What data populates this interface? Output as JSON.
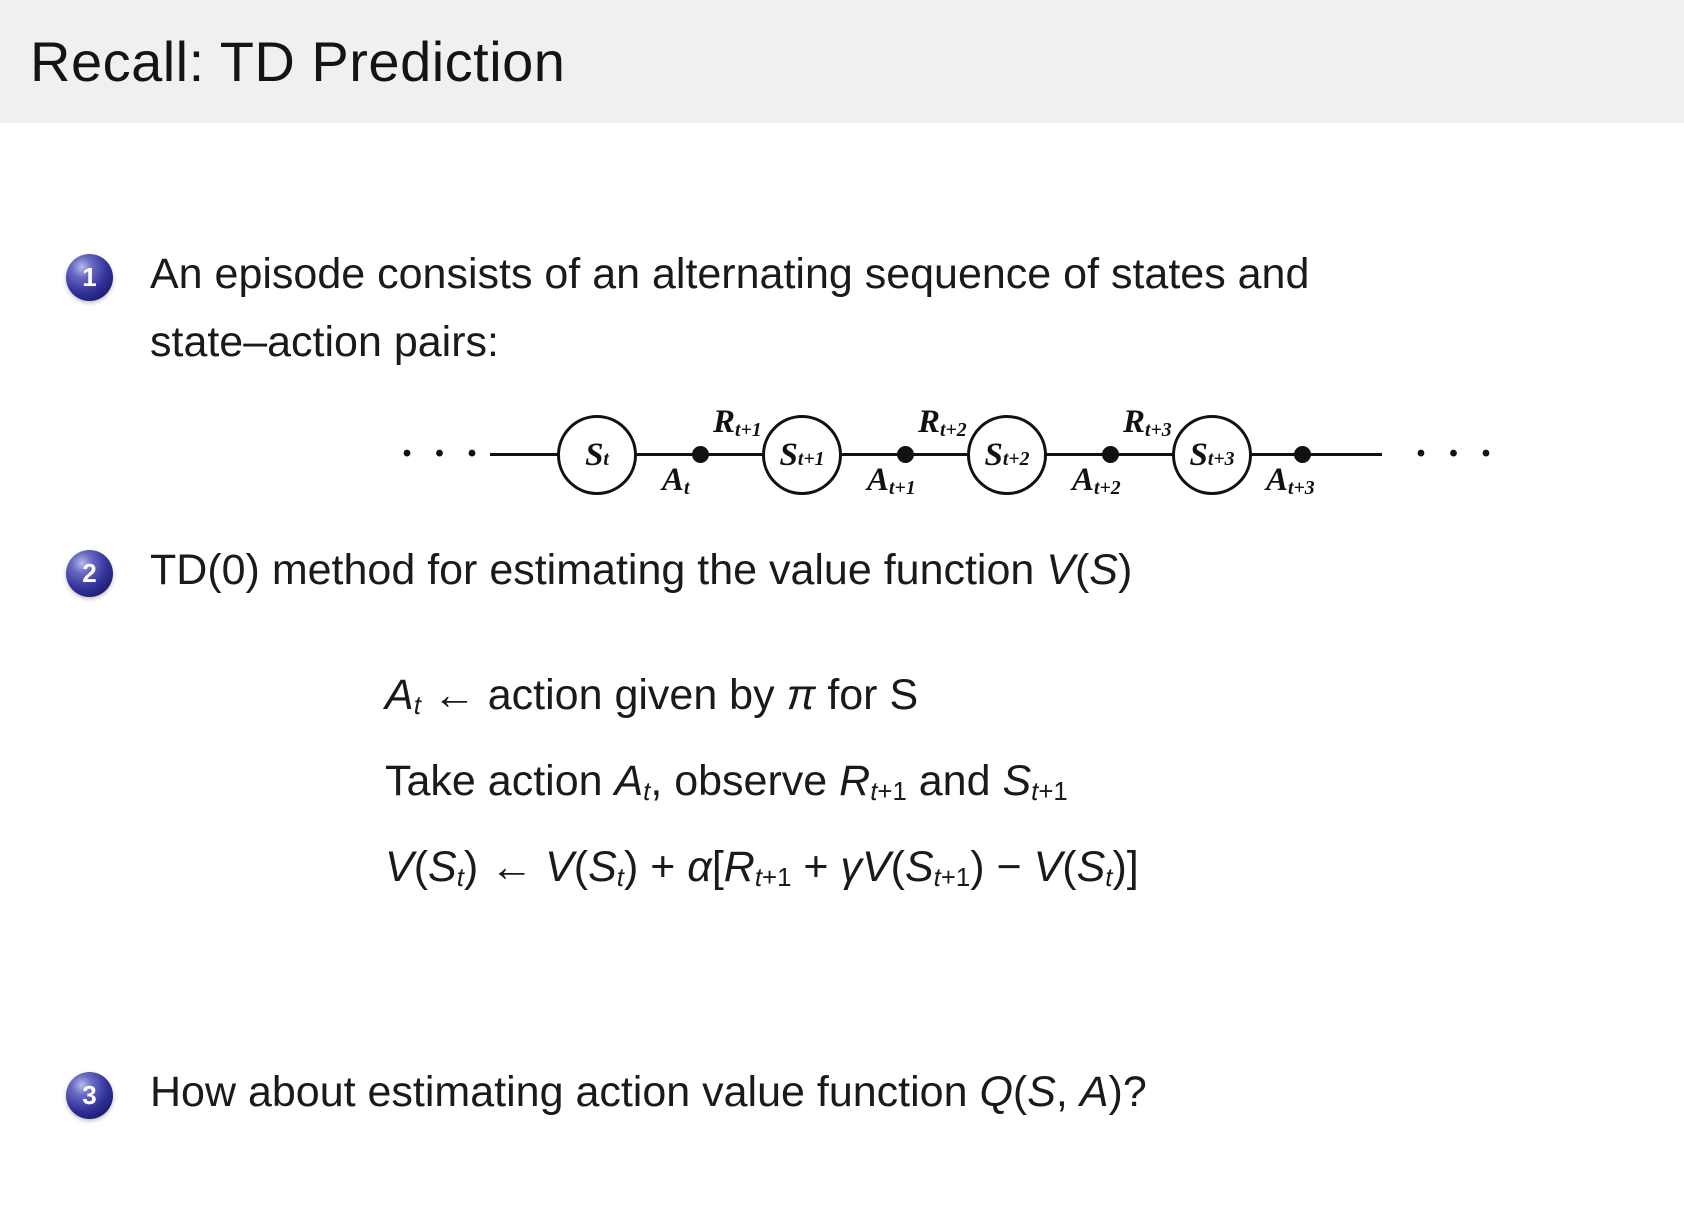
{
  "header": {
    "title": "Recall: TD Prediction"
  },
  "slide": {
    "items": [
      {
        "number": "1",
        "lines": [
          "An episode consists of an alternating sequence of states and",
          "state–action pairs:"
        ]
      },
      {
        "number": "2",
        "math_text": "TD(0) method for estimating the value function *V*(*S*)"
      },
      {
        "number": "3",
        "math_text": "How about estimating action value function *Q*(*S*, *A*)?"
      }
    ],
    "algorithm": [
      "*A*_{*t*} ← action given by *π* for S",
      "Take action *A*_{*t*}, observe *R*_{*t*+1} and *S*_{*t*+1}",
      "*V*(*S*_{*t*}) ← *V*(*S*_{*t*}) + *α*[*R*_{*t*+1} + *γV*(*S*_{*t*+1}) − *V*(*S*_{*t*})]"
    ],
    "diagram": {
      "ellipsis": "· · ·",
      "states": [
        "*S*_{*t*}",
        "*S*_{*t*+1}",
        "*S*_{*t*+2}",
        "*S*_{*t*+3}"
      ],
      "rewards": [
        "*R*_{*t*+1}",
        "*R*_{*t*+2}",
        "*R*_{*t*+3}"
      ],
      "actions": [
        "*A*_{*t*}",
        "*A*_{*t*+1}",
        "*A*_{*t*+2}",
        "*A*_{*t*+3}"
      ]
    }
  }
}
